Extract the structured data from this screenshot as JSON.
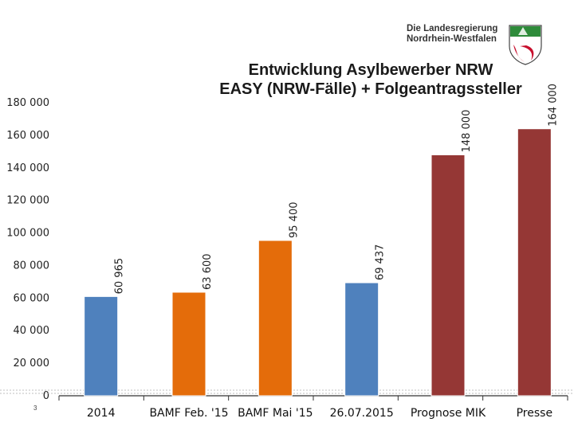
{
  "logo": {
    "line1": "Die Landesregierung",
    "line2": "Nordrhein-Westfalen",
    "icon": "nrw-crest-icon"
  },
  "page_number": "3",
  "chart_data": {
    "type": "bar",
    "title_line1": "Entwicklung Asylbewerber NRW",
    "title_line2": "EASY (NRW-Fälle) + Folgeantragssteller",
    "categories": [
      "2014",
      "BAMF Feb. '15",
      "BAMF Mai '15",
      "26.07.2015",
      "Prognose MIK",
      "Presse"
    ],
    "values": [
      60965,
      63600,
      95400,
      69437,
      148000,
      164000
    ],
    "data_labels": [
      "60 965",
      "63 600",
      "95 400",
      "69 437",
      "148 000",
      "164 000"
    ],
    "bar_colors": [
      "#4f81bd",
      "#e46c0a",
      "#e46c0a",
      "#4f81bd",
      "#953735",
      "#953735"
    ],
    "ylim": [
      0,
      180000
    ],
    "yticks": [
      0,
      20000,
      40000,
      60000,
      80000,
      100000,
      120000,
      140000,
      160000,
      180000
    ],
    "ytick_labels": [
      "0",
      "20 000",
      "40 000",
      "60 000",
      "80 000",
      "100 000",
      "120 000",
      "140 000",
      "160 000",
      "180 000"
    ],
    "grid": false,
    "xlabel": "",
    "ylabel": ""
  }
}
